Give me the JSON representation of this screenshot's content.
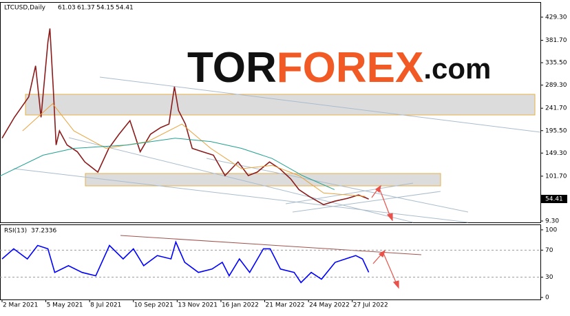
{
  "header": {
    "symbol": "LTCUSD,Daily",
    "open": 61.03,
    "high": 61.37,
    "low": 54.15,
    "close": 54.41
  },
  "watermark": {
    "part1": "TOR",
    "part2": "FOREX",
    "part3": ".com"
  },
  "chart_data": [
    {
      "type": "line",
      "xlim": [
        "2021-02-27",
        "2023-04-28"
      ],
      "ylim": [
        6.5,
        459
      ],
      "yticks": [
        {
          "value": 429.3,
          "label": "429.30"
        },
        {
          "value": 381.7,
          "label": "381.70"
        },
        {
          "value": 335.5,
          "label": "335.50"
        },
        {
          "value": 289.3,
          "label": "289.30"
        },
        {
          "value": 241.7,
          "label": "241.70"
        },
        {
          "value": 195.5,
          "label": "195.50"
        },
        {
          "value": 149.3,
          "label": "149.30"
        },
        {
          "value": 101.7,
          "label": "101.70"
        },
        {
          "value": 9.3,
          "label": "9.30"
        }
      ],
      "series": [
        {
          "color": "#8b1a1a",
          "x": [
            "2021-03-02",
            "2021-03-20",
            "2021-04-10",
            "2021-04-20",
            "2021-04-28",
            "2021-05-08",
            "2021-05-11",
            "2021-05-16",
            "2021-05-20",
            "2021-05-25",
            "2021-06-05",
            "2021-06-20",
            "2021-07-01",
            "2021-07-20",
            "2021-08-05",
            "2021-08-20",
            "2021-09-05",
            "2021-09-20",
            "2021-10-05",
            "2021-10-20",
            "2021-11-01",
            "2021-11-09",
            "2021-11-15",
            "2021-11-25",
            "2021-12-05",
            "2021-12-20",
            "2022-01-05",
            "2022-01-22",
            "2022-02-10",
            "2022-02-25",
            "2022-03-10",
            "2022-03-28",
            "2022-04-12",
            "2022-04-28",
            "2022-05-10",
            "2022-05-25",
            "2022-06-15",
            "2022-07-01",
            "2022-07-20",
            "2022-08-05",
            "2022-08-16",
            "2022-08-20"
          ],
          "values": [
            180,
            223,
            265,
            329,
            223,
            378,
            406,
            279,
            166,
            195,
            166,
            152,
            131,
            110,
            159,
            188,
            216,
            152,
            188,
            202,
            209,
            286,
            237,
            209,
            159,
            152,
            145,
            103,
            131,
            103,
            110,
            131,
            117,
            96,
            74,
            60,
            43,
            50,
            56,
            63,
            57,
            54.41
          ]
        },
        {
          "color": "#e8a33d",
          "x": [
            "2021-04-01",
            "2021-05-15",
            "2021-06-15",
            "2021-08-01",
            "2021-10-01",
            "2021-11-20",
            "2022-01-01",
            "2022-02-15",
            "2022-04-01",
            "2022-05-10",
            "2022-06-15",
            "2022-08-15"
          ],
          "values": [
            195,
            251,
            195,
            159,
            173,
            209,
            159,
            117,
            124,
            103,
            67,
            60
          ]
        },
        {
          "color": "#20a090",
          "x": [
            "2021-02-27",
            "2021-05-01",
            "2021-06-15",
            "2021-09-01",
            "2021-11-10",
            "2022-01-01",
            "2022-02-15",
            "2022-04-01",
            "2022-05-15",
            "2022-07-01"
          ],
          "values": [
            102,
            145,
            159,
            166,
            180,
            173,
            159,
            138,
            103,
            74
          ]
        }
      ]
    },
    {
      "type": "line",
      "name": "RSI(13)",
      "xlim": [
        "2021-02-27",
        "2023-04-28"
      ],
      "ylim": [
        -3,
        107
      ],
      "yticks": [
        100,
        70,
        30,
        0
      ],
      "levels": [
        70,
        30
      ],
      "xticks": [
        {
          "value": "2021-03-02",
          "label": "2 Mar 2021"
        },
        {
          "value": "2021-05-05",
          "label": "5 May 2021"
        },
        {
          "value": "2021-07-08",
          "label": "8 Jul 2021"
        },
        {
          "value": "2021-09-10",
          "label": "10 Sep 2021"
        },
        {
          "value": "2021-11-13",
          "label": "13 Nov 2021"
        },
        {
          "value": "2022-01-16",
          "label": "16 Jan 2022"
        },
        {
          "value": "2022-03-21",
          "label": "21 Mar 2022"
        },
        {
          "value": "2022-05-24",
          "label": "24 May 2022"
        },
        {
          "value": "2022-07-27",
          "label": "27 Jul 2022"
        }
      ],
      "series": [
        {
          "color": "#0000ff",
          "x": [
            "2021-03-02",
            "2021-03-19",
            "2021-04-08",
            "2021-04-23",
            "2021-05-08",
            "2021-05-18",
            "2021-06-07",
            "2021-06-27",
            "2021-07-17",
            "2021-08-06",
            "2021-08-26",
            "2021-09-10",
            "2021-09-25",
            "2021-10-15",
            "2021-11-04",
            "2021-11-11",
            "2021-11-24",
            "2021-12-14",
            "2022-01-03",
            "2022-01-18",
            "2022-01-28",
            "2022-02-12",
            "2022-02-27",
            "2022-03-19",
            "2022-03-29",
            "2022-04-13",
            "2022-05-03",
            "2022-05-13",
            "2022-05-28",
            "2022-06-12",
            "2022-07-02",
            "2022-07-17",
            "2022-08-01",
            "2022-08-11",
            "2022-08-20"
          ],
          "values": [
            57,
            72,
            57,
            77,
            72,
            37,
            47,
            37,
            32,
            77,
            57,
            72,
            47,
            62,
            57,
            82,
            52,
            37,
            42,
            52,
            32,
            57,
            37,
            72,
            72,
            42,
            37,
            22,
            37,
            27,
            52,
            57,
            62,
            57,
            37.2336
          ]
        }
      ]
    }
  ]
}
